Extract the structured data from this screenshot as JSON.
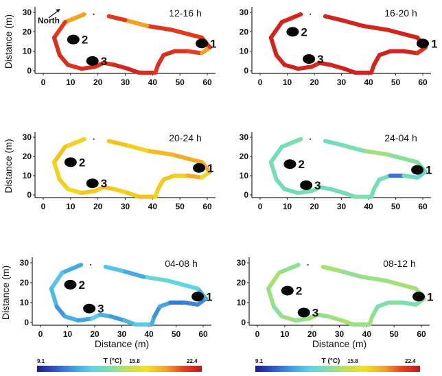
{
  "chart_data": [
    {
      "type": "heatmap",
      "panel": 1,
      "title": "12-16 h",
      "ylabel": "Distance (m)",
      "xlabel": "",
      "xlim": [
        -5,
        62
      ],
      "ylim": [
        -3,
        31
      ],
      "xticks": [
        "0",
        "10",
        "20",
        "30",
        "40",
        "50",
        "60"
      ],
      "yticks": [
        "0",
        "10",
        "20",
        "30"
      ],
      "outline_temperature_c": [
        19.5,
        21.2,
        21.5,
        21.6,
        21.4,
        21.6,
        21.5,
        21.3,
        21.7,
        21.9,
        21.6,
        21.2,
        21.5,
        21.6,
        21.4,
        21.0,
        19.5,
        21.3,
        21.1,
        21.3
      ],
      "north_label": "North",
      "sites": [
        {
          "label": "1",
          "x": 58,
          "y": 14
        },
        {
          "label": "2",
          "x": 11,
          "y": 16
        },
        {
          "label": "3",
          "x": 18,
          "y": 5
        }
      ]
    },
    {
      "type": "heatmap",
      "panel": 2,
      "title": "16-20 h",
      "ylabel": "",
      "xlabel": "",
      "xlim": [
        -5,
        62
      ],
      "ylim": [
        -3,
        31
      ],
      "xticks": [
        "0",
        "10",
        "20",
        "30",
        "40",
        "50",
        "60"
      ],
      "yticks": [
        "0",
        "10",
        "20",
        "30"
      ],
      "outline_temperature_c": [
        21.8,
        21.9,
        21.9,
        21.8,
        22.0,
        21.9,
        21.7,
        21.9,
        21.8,
        22.0,
        21.9,
        21.8,
        21.9,
        22.0,
        21.8,
        21.9,
        21.3,
        21.8,
        21.9,
        21.8
      ],
      "sites": [
        {
          "label": "1",
          "x": 60,
          "y": 14
        },
        {
          "label": "2",
          "x": 12,
          "y": 20
        },
        {
          "label": "3",
          "x": 18,
          "y": 6
        }
      ]
    },
    {
      "type": "heatmap",
      "panel": 3,
      "title": "20-24 h",
      "ylabel": "Distance (m)",
      "xlabel": "",
      "xlim": [
        -5,
        62
      ],
      "ylim": [
        -3,
        31
      ],
      "xticks": [
        "0",
        "10",
        "20",
        "30",
        "40",
        "50",
        "60"
      ],
      "yticks": [
        "0",
        "10",
        "20",
        "30"
      ],
      "outline_temperature_c": [
        18.4,
        18.7,
        18.3,
        18.5,
        18.2,
        18.6,
        18.5,
        18.7,
        18.4,
        18.6,
        18.8,
        18.3,
        18.5,
        18.6,
        18.4,
        19.3,
        17.3,
        19.5,
        19.3,
        19.0
      ],
      "sites": [
        {
          "label": "1",
          "x": 57,
          "y": 14
        },
        {
          "label": "2",
          "x": 10,
          "y": 17
        },
        {
          "label": "3",
          "x": 18,
          "y": 6
        }
      ]
    },
    {
      "type": "heatmap",
      "panel": 4,
      "title": "24-04 h",
      "ylabel": "",
      "xlabel": "",
      "xlim": [
        -5,
        62
      ],
      "ylim": [
        -3,
        31
      ],
      "xticks": [
        "0",
        "10",
        "20",
        "30",
        "40",
        "50",
        "60"
      ],
      "yticks": [
        "0",
        "10",
        "20",
        "30"
      ],
      "outline_temperature_c": [
        14.8,
        14.5,
        14.7,
        14.6,
        14.4,
        14.7,
        14.8,
        14.5,
        14.6,
        14.7,
        14.9,
        14.6,
        14.7,
        14.5,
        11.2,
        14.4,
        13.9,
        14.7,
        15.2,
        15.7
      ],
      "sites": [
        {
          "label": "1",
          "x": 58,
          "y": 13
        },
        {
          "label": "2",
          "x": 11,
          "y": 16
        },
        {
          "label": "3",
          "x": 17,
          "y": 5
        }
      ]
    },
    {
      "type": "heatmap",
      "panel": 5,
      "title": "04-08 h",
      "ylabel": "Distance (m)",
      "xlabel": "Distance (m)",
      "xlim": [
        -5,
        62
      ],
      "ylim": [
        -3,
        31
      ],
      "xticks": [
        "0",
        "10",
        "20",
        "30",
        "40",
        "50",
        "60"
      ],
      "yticks": [
        "0",
        "10",
        "20",
        "30"
      ],
      "outline_temperature_c": [
        12.4,
        13.1,
        12.8,
        11.9,
        12.5,
        12.2,
        13.4,
        12.6,
        12.0,
        12.7,
        13.3,
        12.5,
        11.8,
        12.3,
        11.3,
        11.5,
        11.7,
        12.4,
        13.6,
        13.9
      ],
      "sites": [
        {
          "label": "1",
          "x": 58,
          "y": 13
        },
        {
          "label": "2",
          "x": 11,
          "y": 19
        },
        {
          "label": "3",
          "x": 18,
          "y": 7
        }
      ]
    },
    {
      "type": "heatmap",
      "panel": 6,
      "title": "08-12 h",
      "ylabel": "",
      "xlabel": "Distance (m)",
      "xlim": [
        -5,
        62
      ],
      "ylim": [
        -3,
        31
      ],
      "xticks": [
        "0",
        "10",
        "20",
        "30",
        "40",
        "50",
        "60"
      ],
      "yticks": [
        "0",
        "10",
        "20",
        "30"
      ],
      "outline_temperature_c": [
        15.4,
        15.9,
        15.6,
        15.2,
        15.7,
        15.5,
        15.8,
        15.4,
        15.6,
        15.9,
        15.5,
        15.7,
        15.3,
        14.9,
        15.1,
        14.8,
        15.1,
        15.5,
        15.8,
        15.6
      ],
      "sites": [
        {
          "label": "1",
          "x": 59,
          "y": 13
        },
        {
          "label": "2",
          "x": 11,
          "y": 16
        },
        {
          "label": "3",
          "x": 17,
          "y": 5
        }
      ]
    }
  ],
  "colorbars": [
    {
      "min_label": "9.1",
      "mid_label": "15.8",
      "max_label": "22.4",
      "title": "T (°C)",
      "min": 9.1,
      "max": 22.4
    },
    {
      "min_label": "9.1",
      "mid_label": "15.8",
      "max_label": "22.4",
      "title": "T (°C)",
      "min": 9.1,
      "max": 22.4
    }
  ],
  "colorbar_stops": [
    "#1b1c8a",
    "#2f56c9",
    "#3f9fe0",
    "#5fd3e8",
    "#7ee0a8",
    "#c6e04a",
    "#f2e21b",
    "#f5a623",
    "#e8401d",
    "#c6141b"
  ]
}
